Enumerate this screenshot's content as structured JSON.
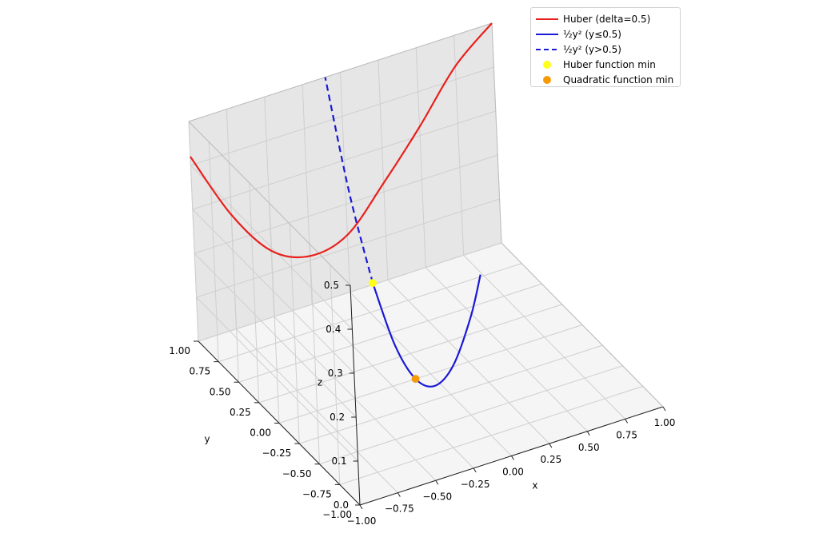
{
  "chart_data": {
    "type": "line3d",
    "axes": {
      "xlabel": "x",
      "ylabel": "y",
      "zlabel": "z",
      "xlim": [
        -1.0,
        1.0
      ],
      "ylim": [
        -1.0,
        1.0
      ],
      "zlim": [
        0.0,
        0.5
      ],
      "xticks": [
        "−1.00",
        "−0.75",
        "−0.50",
        "−0.25",
        "0.00",
        "0.25",
        "0.50",
        "0.75",
        "1.00"
      ],
      "yticks": [
        "−1.00",
        "−0.75",
        "−0.50",
        "−0.25",
        "0.00",
        "0.25",
        "0.50",
        "0.75",
        "1.00"
      ],
      "zticks": [
        "0.0",
        "0.1",
        "0.2",
        "0.3",
        "0.4",
        "0.5"
      ],
      "grid": true
    },
    "legend": {
      "placement": "upper right"
    },
    "series": [
      {
        "name": "Huber (delta=0.5)",
        "color": "#e8211d",
        "style": "solid",
        "points": [
          [
            -1.0,
            1.0,
            0.42
          ],
          [
            -0.75,
            1.0,
            0.26
          ],
          [
            -0.5,
            1.0,
            0.15
          ],
          [
            -0.25,
            1.0,
            0.11
          ],
          [
            0.0,
            1.0,
            0.13
          ],
          [
            0.25,
            1.0,
            0.22
          ],
          [
            0.5,
            1.0,
            0.32
          ],
          [
            0.75,
            1.0,
            0.43
          ],
          [
            1.0,
            1.0,
            0.5
          ]
        ]
      },
      {
        "name": "½y² (y≤0.5)",
        "color": "#1a1ad6",
        "style": "solid",
        "points": [
          [
            -0.1,
            0.5,
            0.125
          ],
          [
            -0.1,
            0.25,
            0.031
          ],
          [
            -0.1,
            0.0,
            0.0
          ],
          [
            -0.1,
            -0.25,
            0.031
          ],
          [
            -0.1,
            -0.5,
            0.125
          ],
          [
            -0.1,
            -0.75,
            0.281
          ],
          [
            -0.1,
            -0.9,
            0.405
          ]
        ]
      },
      {
        "name": "½y² (y>0.5)",
        "color": "#1a1ad6",
        "style": "dashed",
        "points": [
          [
            -0.1,
            0.5,
            0.125
          ],
          [
            -0.1,
            0.75,
            0.281
          ],
          [
            -0.1,
            1.0,
            0.5
          ]
        ]
      }
    ],
    "markers": [
      {
        "name": "Huber function min",
        "color": "#ffff1a",
        "point": [
          -0.1,
          0.5,
          0.125
        ]
      },
      {
        "name": "Quadratic function min",
        "color": "#f59b0a",
        "point": [
          -0.1,
          0.0,
          0.0
        ]
      }
    ]
  }
}
